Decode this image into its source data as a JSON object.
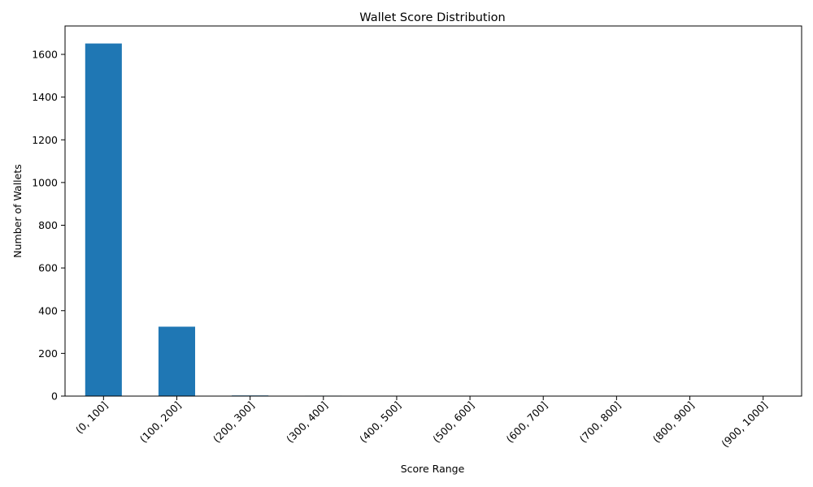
{
  "chart_data": {
    "type": "bar",
    "title": "Wallet Score Distribution",
    "xlabel": "Score Range",
    "ylabel": "Number of Wallets",
    "categories": [
      "(0, 100]",
      "(100, 200]",
      "(200, 300]",
      "(300, 400]",
      "(400, 500]",
      "(500, 600]",
      "(600, 700]",
      "(700, 800]",
      "(800, 900]",
      "(900, 1000]"
    ],
    "values": [
      1651,
      325,
      3,
      2,
      0,
      0,
      0,
      0,
      0,
      0
    ],
    "ylim": [
      0,
      1733
    ],
    "yticks": [
      0,
      200,
      400,
      600,
      800,
      1000,
      1200,
      1400,
      1600
    ],
    "bar_color": "#1f77b4",
    "grid": false,
    "legend": null,
    "x_tick_rotation_deg": 45
  }
}
